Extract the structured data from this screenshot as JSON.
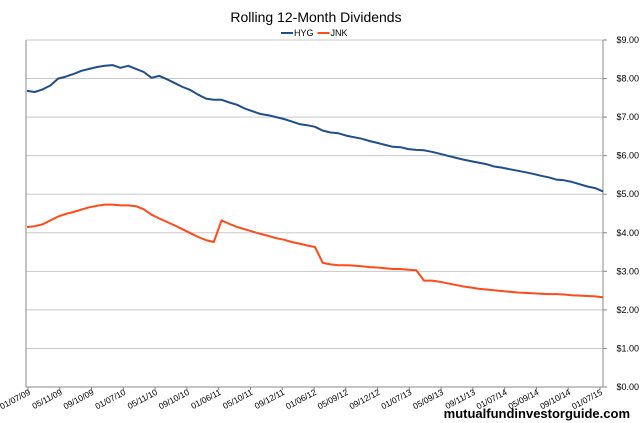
{
  "watermark": "mutualfundinvestorguide.com",
  "chart_data": {
    "type": "line",
    "title": "Rolling 12-Month Dividends",
    "xlabel": "",
    "ylabel": "",
    "ylim": [
      0,
      9
    ],
    "y_ticks": [
      "$0.00",
      "$1.00",
      "$2.00",
      "$3.00",
      "$4.00",
      "$5.00",
      "$6.00",
      "$7.00",
      "$8.00",
      "$9.00"
    ],
    "y_axis_position": "right",
    "grid": "horizontal",
    "legend": "top-center",
    "x_tick_labels": [
      "01/07/09",
      "05/11/09",
      "09/10/09",
      "01/07/10",
      "05/11/10",
      "09/10/10",
      "01/06/11",
      "05/10/11",
      "09/12/11",
      "01/06/12",
      "05/09/12",
      "09/12/12",
      "01/07/13",
      "05/09/13",
      "09/11/13",
      "01/07/14",
      "05/09/14",
      "09/10/14",
      "01/07/15"
    ],
    "series": [
      {
        "name": "HYG",
        "color": "#1f4e8c",
        "values": [
          7.68,
          7.65,
          7.72,
          7.82,
          8.0,
          8.05,
          8.12,
          8.2,
          8.25,
          8.3,
          8.33,
          8.35,
          8.28,
          8.33,
          8.25,
          8.17,
          8.02,
          8.07,
          7.98,
          7.88,
          7.78,
          7.7,
          7.58,
          7.48,
          7.45,
          7.45,
          7.38,
          7.32,
          7.22,
          7.15,
          7.08,
          7.05,
          7.0,
          6.95,
          6.89,
          6.82,
          6.79,
          6.75,
          6.65,
          6.6,
          6.58,
          6.52,
          6.48,
          6.44,
          6.38,
          6.33,
          6.28,
          6.23,
          6.22,
          6.17,
          6.15,
          6.14,
          6.1,
          6.05,
          6.0,
          5.95,
          5.9,
          5.86,
          5.82,
          5.78,
          5.72,
          5.69,
          5.65,
          5.61,
          5.57,
          5.53,
          5.48,
          5.44,
          5.38,
          5.36,
          5.32,
          5.26,
          5.2,
          5.16,
          5.07
        ]
      },
      {
        "name": "JNK",
        "color": "#ff4a1a",
        "values": [
          4.15,
          4.17,
          4.22,
          4.32,
          4.42,
          4.49,
          4.54,
          4.6,
          4.66,
          4.7,
          4.73,
          4.73,
          4.71,
          4.71,
          4.69,
          4.61,
          4.47,
          4.37,
          4.28,
          4.19,
          4.09,
          3.99,
          3.89,
          3.81,
          3.76,
          4.32,
          4.23,
          4.15,
          4.09,
          4.03,
          3.97,
          3.92,
          3.86,
          3.82,
          3.76,
          3.72,
          3.67,
          3.63,
          3.22,
          3.18,
          3.16,
          3.16,
          3.15,
          3.13,
          3.11,
          3.1,
          3.08,
          3.06,
          3.06,
          3.04,
          3.03,
          2.76,
          2.76,
          2.73,
          2.69,
          2.65,
          2.61,
          2.58,
          2.55,
          2.53,
          2.51,
          2.49,
          2.47,
          2.45,
          2.44,
          2.43,
          2.42,
          2.41,
          2.41,
          2.4,
          2.38,
          2.37,
          2.36,
          2.35,
          2.33
        ]
      }
    ]
  }
}
